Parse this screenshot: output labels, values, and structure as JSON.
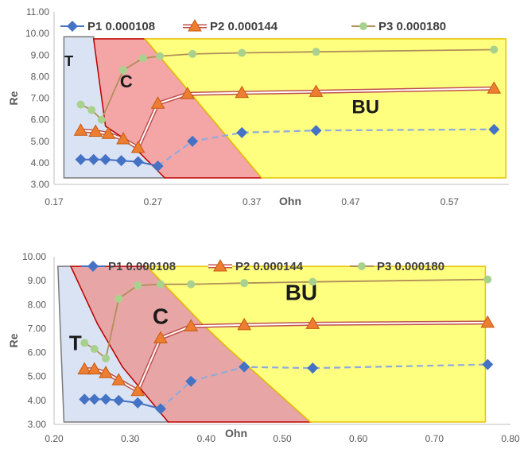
{
  "chart_data": [
    {
      "type": "line",
      "xlabel": "Ohn",
      "ylabel": "Re",
      "xlim": [
        0.17,
        0.63
      ],
      "ylim": [
        3.0,
        11.0
      ],
      "x_ticks": [
        "0.17",
        "0.27",
        "0.37",
        "0.47",
        "0.57"
      ],
      "y_ticks": [
        "3.00",
        "4.00",
        "5.00",
        "6.00",
        "7.00",
        "8.00",
        "9.00",
        "10.00",
        "11.00"
      ],
      "grid": false,
      "legend_position": "top",
      "series": [
        {
          "name": "P1 0.000108",
          "color": "#4472C4",
          "marker": "diamond",
          "style": "solid-then-dashed",
          "x": [
            0.197,
            0.21,
            0.222,
            0.238,
            0.255,
            0.275,
            0.31,
            0.36,
            0.435,
            0.615
          ],
          "y": [
            4.15,
            4.15,
            4.15,
            4.1,
            4.05,
            3.85,
            5.0,
            5.4,
            5.5,
            5.55
          ]
        },
        {
          "name": "P2 0.000144",
          "color": "#ED7D31",
          "marker": "triangle",
          "style": "double",
          "x": [
            0.197,
            0.212,
            0.225,
            0.24,
            0.255,
            0.275,
            0.305,
            0.36,
            0.435,
            0.615
          ],
          "y": [
            5.5,
            5.45,
            5.35,
            5.1,
            4.7,
            6.75,
            7.2,
            7.25,
            7.3,
            7.45
          ]
        },
        {
          "name": "P3 0.000180",
          "color": "#A9D18E",
          "marker": "circle",
          "style": "solid",
          "x": [
            0.197,
            0.208,
            0.218,
            0.24,
            0.26,
            0.277,
            0.31,
            0.36,
            0.435,
            0.615
          ],
          "y": [
            6.7,
            6.45,
            6.0,
            8.3,
            8.85,
            8.95,
            9.05,
            9.1,
            9.15,
            9.25
          ]
        }
      ],
      "annotations": [
        "T",
        "C",
        "BU"
      ]
    },
    {
      "type": "line",
      "xlabel": "Ohn",
      "ylabel": "Re",
      "xlim": [
        0.2,
        0.8
      ],
      "ylim": [
        3.0,
        10.0
      ],
      "x_ticks": [
        "0.20",
        "0.30",
        "0.40",
        "0.50",
        "0.60",
        "0.70",
        "0.80"
      ],
      "y_ticks": [
        "3.00",
        "4.00",
        "5.00",
        "6.00",
        "7.00",
        "8.00",
        "9.00",
        "10.00"
      ],
      "grid": false,
      "legend_position": "top",
      "series": [
        {
          "name": "P1 0.000108",
          "color": "#4472C4",
          "marker": "diamond",
          "style": "solid-then-dashed",
          "x": [
            0.24,
            0.253,
            0.268,
            0.285,
            0.31,
            0.34,
            0.38,
            0.45,
            0.54,
            0.77
          ],
          "y": [
            4.05,
            4.05,
            4.05,
            4.0,
            3.9,
            3.65,
            4.8,
            5.4,
            5.35,
            5.5
          ]
        },
        {
          "name": "P2 0.000144",
          "color": "#ED7D31",
          "marker": "triangle",
          "style": "double",
          "x": [
            0.24,
            0.253,
            0.268,
            0.285,
            0.31,
            0.34,
            0.38,
            0.45,
            0.54,
            0.77
          ],
          "y": [
            5.3,
            5.3,
            5.15,
            4.85,
            4.4,
            6.6,
            7.1,
            7.15,
            7.2,
            7.25
          ]
        },
        {
          "name": "P3 0.000180",
          "color": "#A9D18E",
          "marker": "circle",
          "style": "solid",
          "x": [
            0.24,
            0.253,
            0.268,
            0.285,
            0.31,
            0.34,
            0.38,
            0.45,
            0.54,
            0.77
          ],
          "y": [
            6.4,
            6.15,
            5.75,
            8.25,
            8.8,
            8.85,
            8.85,
            8.9,
            8.95,
            9.05
          ]
        }
      ],
      "annotations": [
        "T",
        "C",
        "BU"
      ]
    }
  ]
}
